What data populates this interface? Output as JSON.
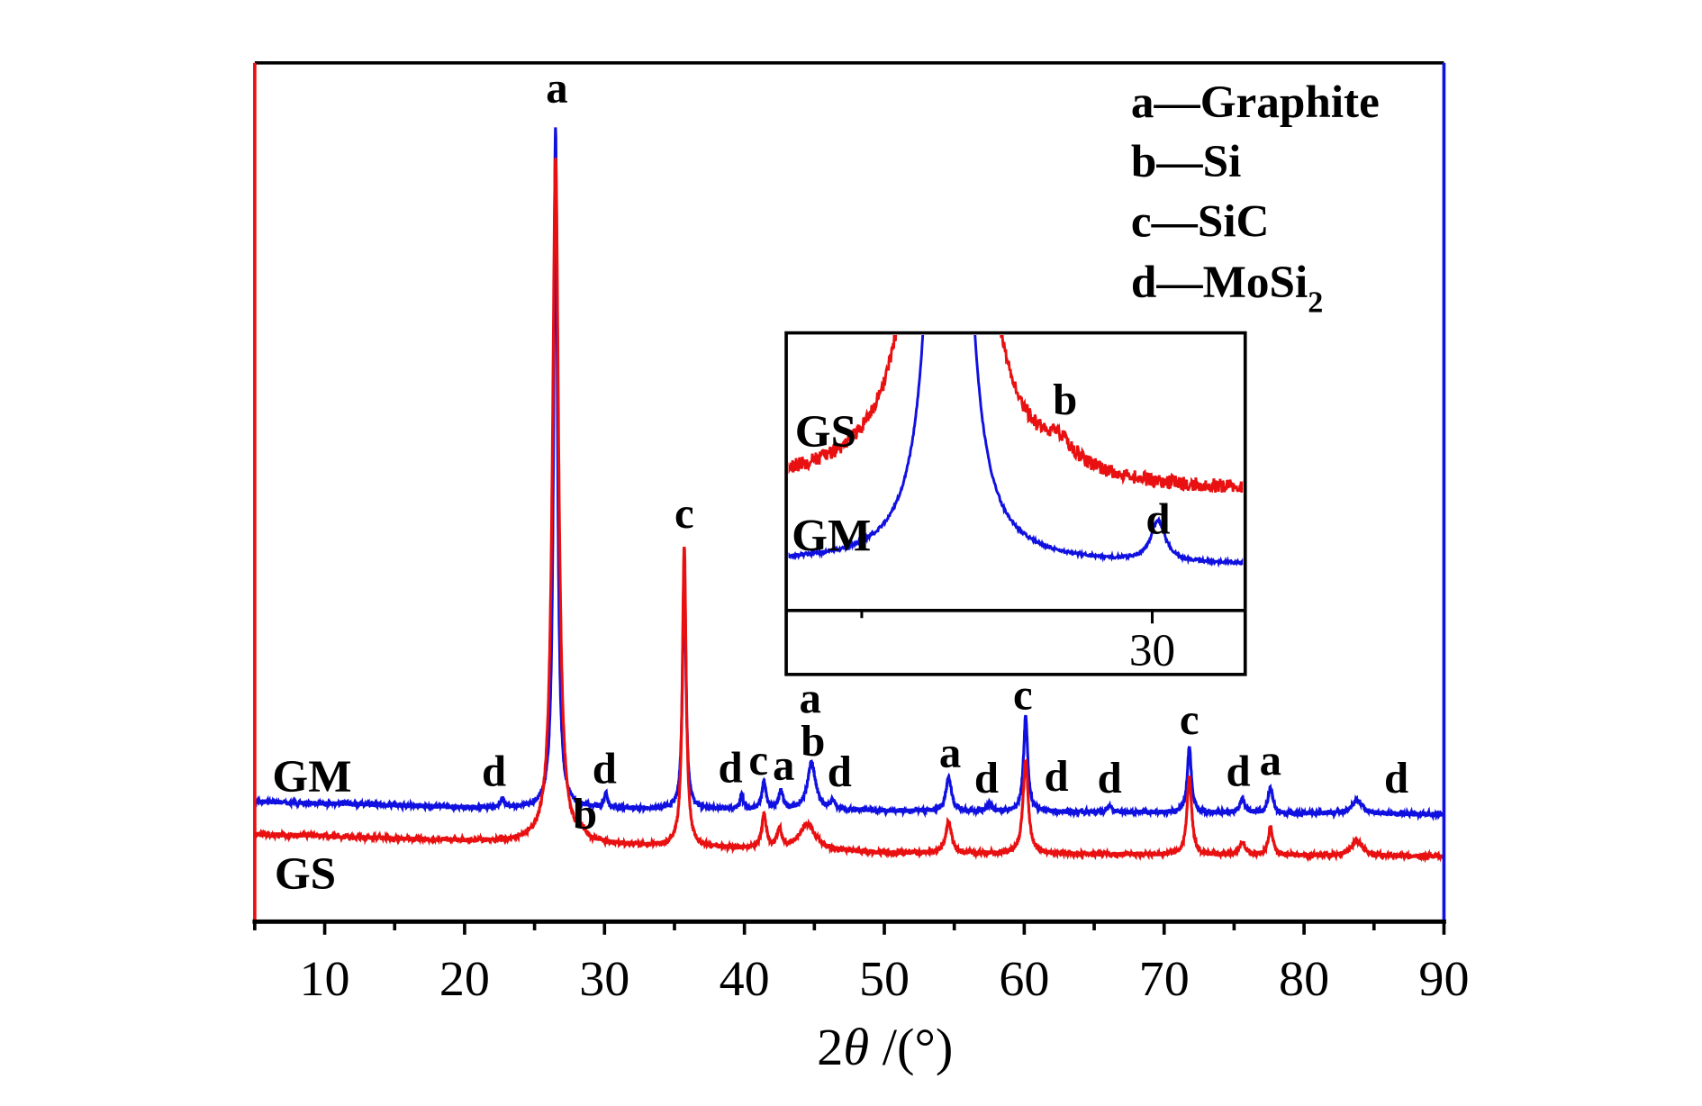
{
  "chart_data": {
    "type": "line",
    "title": "",
    "xlabel_main": "2",
    "xlabel_theta": "θ",
    "xlabel_unit": " /(°)",
    "ylabel": "",
    "xlim": [
      5,
      90
    ],
    "ylim": [
      0,
      100
    ],
    "xticks": [
      10,
      20,
      30,
      40,
      50,
      60,
      70,
      80,
      90
    ],
    "grid": false,
    "colors": {
      "GM": "#1010e0",
      "GS": "#e81010",
      "axis": "#000000"
    },
    "legend": {
      "placement": "top-right",
      "entries": [
        {
          "key": "a",
          "dash": "—",
          "phase": "Graphite",
          "sub": ""
        },
        {
          "key": "b",
          "dash": "—",
          "phase": "Si",
          "sub": ""
        },
        {
          "key": "c",
          "dash": "—",
          "phase": "SiC",
          "sub": ""
        },
        {
          "key": "d",
          "dash": "—",
          "phase": "MoSi",
          "sub": "2"
        }
      ]
    },
    "series": [
      {
        "name": "GM",
        "baseline": [
          [
            5,
            14.0
          ],
          [
            20,
            13.3
          ],
          [
            50,
            12.9
          ],
          [
            90,
            12.5
          ]
        ],
        "peaks": [
          {
            "x": 22.7,
            "h": 1.0,
            "w": 0.15
          },
          {
            "x": 26.5,
            "h": 79.5,
            "w": 0.16
          },
          {
            "x": 30.1,
            "h": 1.6,
            "w": 0.15
          },
          {
            "x": 35.7,
            "h": 28.6,
            "w": 0.14
          },
          {
            "x": 39.8,
            "h": 1.6,
            "w": 0.15
          },
          {
            "x": 41.4,
            "h": 3.2,
            "w": 0.18
          },
          {
            "x": 42.6,
            "h": 2.2,
            "w": 0.18
          },
          {
            "x": 44.8,
            "h": 5.5,
            "w": 0.35
          },
          {
            "x": 46.3,
            "h": 1.0,
            "w": 0.2
          },
          {
            "x": 54.6,
            "h": 3.8,
            "w": 0.25
          },
          {
            "x": 57.5,
            "h": 0.8,
            "w": 0.2
          },
          {
            "x": 60.1,
            "h": 11.0,
            "w": 0.18
          },
          {
            "x": 66.1,
            "h": 0.6,
            "w": 0.2
          },
          {
            "x": 71.8,
            "h": 7.5,
            "w": 0.18
          },
          {
            "x": 75.6,
            "h": 1.6,
            "w": 0.22
          },
          {
            "x": 77.6,
            "h": 3.0,
            "w": 0.2
          },
          {
            "x": 83.8,
            "h": 1.6,
            "w": 0.45
          }
        ]
      },
      {
        "name": "GS",
        "baseline": [
          [
            5,
            10.2
          ],
          [
            20,
            9.4
          ],
          [
            50,
            8.0
          ],
          [
            90,
            7.6
          ]
        ],
        "peaks": [
          {
            "x": 26.5,
            "h": 80.0,
            "w": 0.26
          },
          {
            "x": 28.4,
            "h": 0.8,
            "w": 0.3
          },
          {
            "x": 35.7,
            "h": 35.0,
            "w": 0.16
          },
          {
            "x": 41.4,
            "h": 3.8,
            "w": 0.2
          },
          {
            "x": 42.5,
            "h": 2.2,
            "w": 0.2
          },
          {
            "x": 44.5,
            "h": 3.0,
            "w": 0.7
          },
          {
            "x": 54.6,
            "h": 3.7,
            "w": 0.25
          },
          {
            "x": 60.1,
            "h": 11.0,
            "w": 0.22
          },
          {
            "x": 71.8,
            "h": 9.0,
            "w": 0.2
          },
          {
            "x": 75.6,
            "h": 1.5,
            "w": 0.25
          },
          {
            "x": 77.6,
            "h": 3.2,
            "w": 0.2
          },
          {
            "x": 83.8,
            "h": 1.8,
            "w": 0.45
          }
        ]
      }
    ],
    "series_labels": [
      {
        "text": "GM",
        "series": "GM"
      },
      {
        "text": "GS",
        "series": "GS"
      }
    ],
    "annotations": [
      {
        "label": "d",
        "x": 22.1,
        "y": 17.0
      },
      {
        "label": "a",
        "x": 26.6,
        "y": 96.6
      },
      {
        "label": "b",
        "x": 28.6,
        "y": 12.0
      },
      {
        "label": "d",
        "x": 30.0,
        "y": 17.3
      },
      {
        "label": "c",
        "x": 35.7,
        "y": 47.0
      },
      {
        "label": "d",
        "x": 39.0,
        "y": 17.4
      },
      {
        "label": "c",
        "x": 41.0,
        "y": 18.3
      },
      {
        "label": "a",
        "x": 42.8,
        "y": 17.7
      },
      {
        "label": "a",
        "x": 44.7,
        "y": 25.5
      },
      {
        "label": "b",
        "x": 44.9,
        "y": 20.5
      },
      {
        "label": "d",
        "x": 46.8,
        "y": 16.9
      },
      {
        "label": "a",
        "x": 54.7,
        "y": 19.2
      },
      {
        "label": "d",
        "x": 57.3,
        "y": 16.2
      },
      {
        "label": "c",
        "x": 59.9,
        "y": 25.9
      },
      {
        "label": "d",
        "x": 62.3,
        "y": 16.4
      },
      {
        "label": "d",
        "x": 66.1,
        "y": 16.2
      },
      {
        "label": "c",
        "x": 71.8,
        "y": 23.0
      },
      {
        "label": "d",
        "x": 75.3,
        "y": 17.0
      },
      {
        "label": "a",
        "x": 77.6,
        "y": 18.3
      },
      {
        "label": "d",
        "x": 86.6,
        "y": 16.2
      }
    ],
    "inset": {
      "xlim": [
        23.7,
        31.6
      ],
      "ylim": [
        11.4,
        22.3
      ],
      "xticks_major": [
        30
      ],
      "xticks_minor": [
        25
      ],
      "series_offsets": {
        "GM": 0,
        "GS": 7.1
      },
      "series_labels": [
        {
          "text": "GS",
          "series": "GS"
        },
        {
          "text": "GM",
          "series": "GM"
        }
      ],
      "annotations": [
        {
          "label": "b",
          "x": 28.5,
          "y": 19.5
        },
        {
          "label": "d",
          "x": 30.1,
          "y": 14.8
        }
      ]
    }
  }
}
